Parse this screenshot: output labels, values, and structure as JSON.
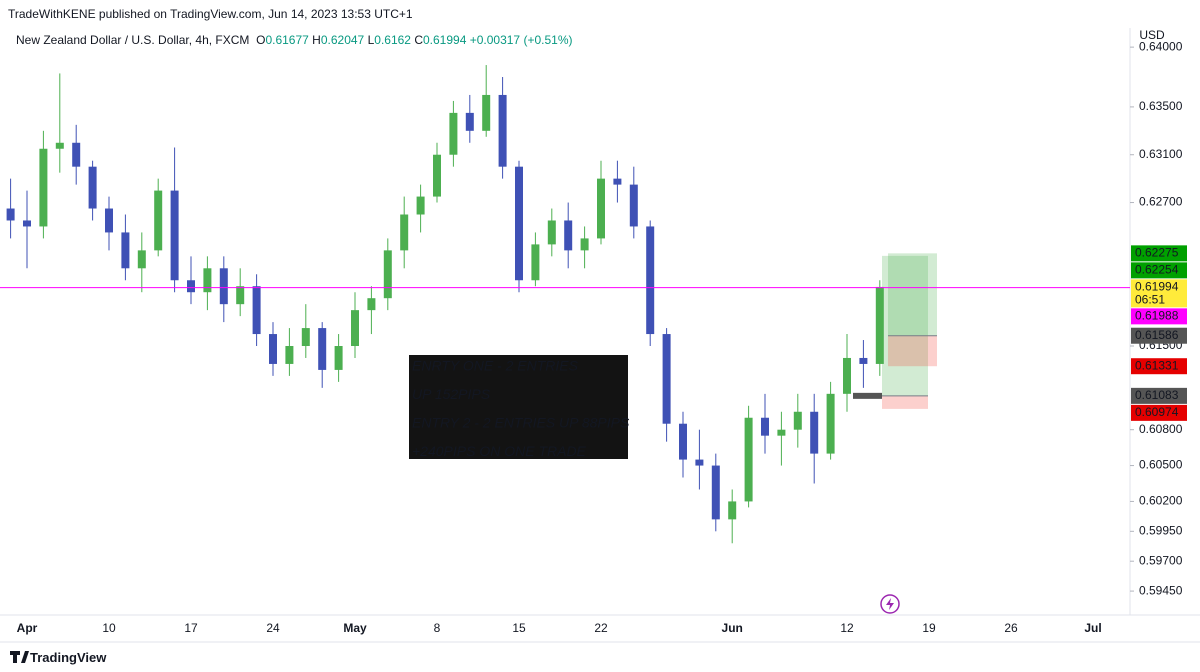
{
  "header": {
    "published": "TradeWithKENE published on TradingView.com, Jun 14, 2023 13:53 UTC+1"
  },
  "legend": {
    "symbol": "New Zealand Dollar / U.S. Dollar, 4h, FXCM",
    "o_label": "O",
    "open": 0.61677,
    "h_label": "H",
    "high": 0.62047,
    "l_label": "L",
    "low": 0.6162,
    "c_label": "C",
    "close": 0.61994,
    "change": "+0.00317",
    "change_pct": "(+0.51%)"
  },
  "branding": "TradingView",
  "chart_data": {
    "type": "candlestick",
    "currency": "USD",
    "up_color": "#4caf50",
    "down_color": "#3f51b5",
    "categories": [
      null,
      "Apr",
      null,
      null,
      null,
      null,
      "10",
      null,
      null,
      null,
      null,
      "17",
      null,
      null,
      null,
      null,
      "24",
      null,
      null,
      null,
      null,
      "May",
      null,
      null,
      null,
      null,
      "8",
      null,
      null,
      null,
      null,
      "15",
      null,
      null,
      null,
      null,
      "22",
      null,
      null,
      null,
      null,
      null,
      null,
      null,
      "Jun",
      null,
      null,
      null,
      null,
      null,
      null,
      "12",
      null,
      null,
      null,
      null,
      "19",
      null,
      null,
      null,
      null,
      "26",
      null,
      null,
      null,
      null,
      "Jul"
    ],
    "open": [
      0.6265,
      0.6255,
      0.625,
      0.6315,
      0.632,
      0.63,
      0.6265,
      0.6245,
      0.6215,
      0.623,
      0.628,
      0.6205,
      0.6195,
      0.6215,
      0.6185,
      0.62,
      0.616,
      0.6135,
      0.615,
      0.6165,
      0.613,
      0.615,
      0.618,
      0.619,
      0.623,
      0.626,
      0.6275,
      0.631,
      0.6345,
      0.633,
      0.636,
      0.63,
      0.6205,
      0.6235,
      0.6255,
      0.623,
      0.624,
      0.629,
      0.6285,
      0.625,
      0.616,
      0.6085,
      0.6055,
      0.605,
      0.6005,
      0.602,
      0.609,
      0.6075,
      0.608,
      0.6095,
      0.606,
      0.611,
      0.614,
      0.6135,
      null,
      null,
      null,
      null,
      null,
      null,
      null,
      null,
      null,
      null,
      null,
      null,
      null
    ],
    "high": [
      0.629,
      0.628,
      0.633,
      0.6378,
      0.6335,
      0.6305,
      0.6275,
      0.626,
      0.6245,
      0.629,
      0.6316,
      0.6225,
      0.6225,
      0.6225,
      0.6215,
      0.621,
      0.617,
      0.6165,
      0.6185,
      0.617,
      0.616,
      0.6195,
      0.62,
      0.624,
      0.6275,
      0.6285,
      0.632,
      0.6355,
      0.636,
      0.6385,
      0.6375,
      0.6305,
      0.6245,
      0.6265,
      0.627,
      0.625,
      0.6305,
      0.6305,
      0.63,
      0.6255,
      0.6165,
      0.6095,
      0.608,
      0.606,
      0.603,
      0.61,
      0.611,
      0.6095,
      0.611,
      0.611,
      0.612,
      0.616,
      0.6155,
      0.6205,
      null,
      null,
      null,
      null,
      null,
      null,
      null,
      null,
      null,
      null,
      null,
      null,
      null
    ],
    "low": [
      0.624,
      0.6215,
      0.624,
      0.6295,
      0.6285,
      0.6255,
      0.623,
      0.6205,
      0.6195,
      0.6225,
      0.6195,
      0.6185,
      0.618,
      0.617,
      0.6175,
      0.615,
      0.6125,
      0.6125,
      0.614,
      0.6115,
      0.612,
      0.614,
      0.616,
      0.618,
      0.6215,
      0.6245,
      0.627,
      0.63,
      0.632,
      0.6325,
      0.629,
      0.6195,
      0.62,
      0.6225,
      0.6215,
      0.6215,
      0.6235,
      0.627,
      0.624,
      0.615,
      0.607,
      0.604,
      0.603,
      0.5995,
      0.5985,
      0.6015,
      0.606,
      0.605,
      0.6065,
      0.6035,
      0.6055,
      0.6095,
      0.6115,
      0.6125,
      null,
      null,
      null,
      null,
      null,
      null,
      null,
      null,
      null,
      null,
      null,
      null,
      null
    ],
    "close": [
      0.6255,
      0.625,
      0.6315,
      0.632,
      0.63,
      0.6265,
      0.6245,
      0.6215,
      0.623,
      0.628,
      0.6205,
      0.6195,
      0.6215,
      0.6185,
      0.62,
      0.616,
      0.6135,
      0.615,
      0.6165,
      0.613,
      0.615,
      0.618,
      0.619,
      0.623,
      0.626,
      0.6275,
      0.631,
      0.6345,
      0.633,
      0.636,
      0.63,
      0.6205,
      0.6235,
      0.6255,
      0.623,
      0.624,
      0.629,
      0.6285,
      0.625,
      0.616,
      0.6085,
      0.6055,
      0.605,
      0.6005,
      0.602,
      0.609,
      0.6075,
      0.608,
      0.6095,
      0.606,
      0.611,
      0.614,
      0.6135,
      0.61994,
      null,
      null,
      null,
      null,
      null,
      null,
      null,
      null,
      null,
      null,
      null,
      null,
      null
    ],
    "ylim": [
      0.5925,
      0.6416
    ],
    "yticks": [
      {
        "value": 0.64,
        "label": "0.64000"
      },
      {
        "value": 0.635,
        "label": "0.63500"
      },
      {
        "value": 0.631,
        "label": "0.63100"
      },
      {
        "value": 0.627,
        "label": "0.62700"
      },
      {
        "value": 0.615,
        "label": "0.61500"
      },
      {
        "value": 0.608,
        "label": "0.60800"
      },
      {
        "value": 0.605,
        "label": "0.60500"
      },
      {
        "value": 0.602,
        "label": "0.60200"
      },
      {
        "value": 0.5995,
        "label": "0.59950"
      },
      {
        "value": 0.597,
        "label": "0.59700"
      },
      {
        "value": 0.5945,
        "label": "0.59450"
      }
    ],
    "grid": false,
    "price_labels": [
      {
        "value": 0.62275,
        "color": "#00a000"
      },
      {
        "value": 0.62254,
        "color": "#00a000"
      },
      {
        "value": 0.61994,
        "color": "#ffeb3b",
        "countdown": "06:51"
      },
      {
        "value": 0.61988,
        "color": "#ff00ff"
      },
      {
        "value": 0.61586,
        "color": "#555555"
      },
      {
        "value": 0.61331,
        "color": "#e50000"
      },
      {
        "value": 0.61083,
        "color": "#555555"
      },
      {
        "value": 0.60974,
        "color": "#e50000"
      }
    ],
    "annotation": [
      "ENRTY ONE - 2 ENTRIES",
      "UP 152PIPS",
      "ENTRY 2 - 2 ENTRIES UP 88PIPS",
      "+240PIPS ON ONE TRADE"
    ]
  }
}
